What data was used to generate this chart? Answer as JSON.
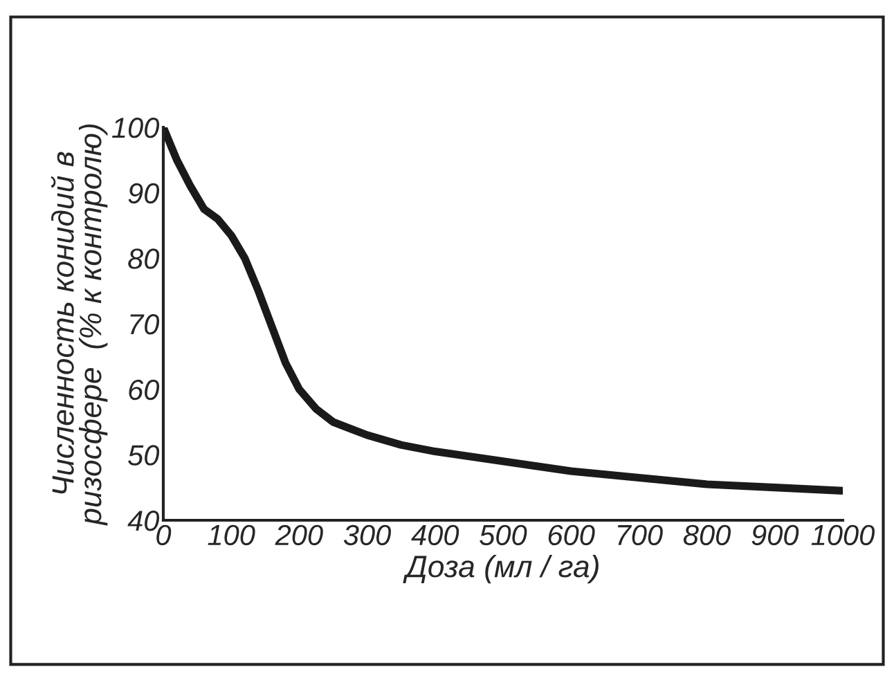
{
  "chart_data": {
    "type": "line",
    "xlabel": "Доза (мл / га)",
    "ylabel": "Численность конидий в\nризосфере  (% к контролю)",
    "x": [
      0,
      20,
      40,
      60,
      80,
      100,
      120,
      140,
      160,
      180,
      200,
      225,
      250,
      275,
      300,
      350,
      400,
      500,
      600,
      700,
      800,
      900,
      1000
    ],
    "series": [
      {
        "color": "#1a1a1a",
        "values": [
          100,
          95,
          91,
          87.5,
          86,
          83.5,
          80,
          75,
          69.5,
          64,
          60,
          57,
          55,
          54,
          53,
          51.5,
          50.5,
          49,
          47.5,
          46.5,
          45.5,
          45,
          44.5
        ]
      }
    ],
    "xlim": [
      0,
      1000
    ],
    "ylim": [
      40,
      100
    ],
    "xticks": [
      0,
      100,
      200,
      300,
      400,
      500,
      600,
      700,
      800,
      900,
      1000
    ],
    "yticks": [
      40,
      50,
      60,
      70,
      80,
      90,
      100
    ],
    "grid": false,
    "marker": "none",
    "line_style": "solid"
  }
}
